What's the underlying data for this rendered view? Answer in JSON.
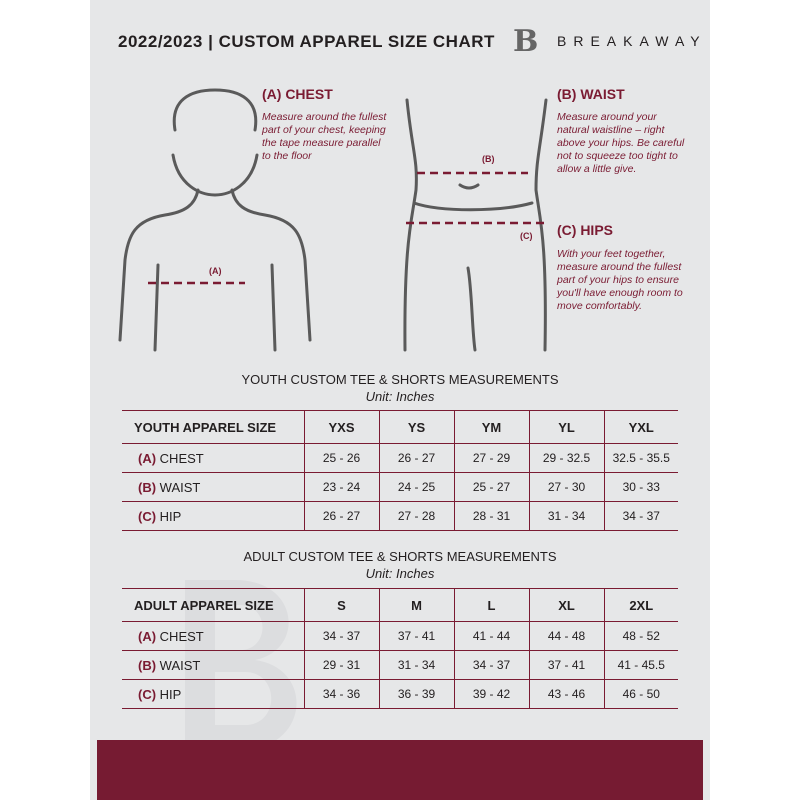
{
  "header": {
    "title": "2022/2023  |  CUSTOM APPAREL SIZE CHART",
    "brand": "BREAKAWAY",
    "logo_letter": "B"
  },
  "measures": {
    "chest": {
      "heading": "(A) CHEST",
      "marker": "(A)",
      "text": "Measure around the fullest part of your chest, keeping the tape measure parallel to the floor"
    },
    "waist": {
      "heading": "(B) WAIST",
      "marker": "(B)",
      "text": "Measure around your natural waistline – right above your hips. Be careful not to squeeze too tight to allow a little give."
    },
    "hips": {
      "heading": "(C) HIPS",
      "marker": "(C)",
      "text": "With your feet together, measure around the fullest part of your hips to ensure you'll have enough room to move comfortably."
    }
  },
  "youth": {
    "title": "YOUTH CUSTOM TEE & SHORTS MEASUREMENTS",
    "unit": "Unit: Inches",
    "header": [
      "YOUTH APPAREL SIZE",
      "YXS",
      "YS",
      "YM",
      "YL",
      "YXL"
    ],
    "rows": [
      {
        "code": "(A)",
        "name": "CHEST",
        "values": [
          "25 - 26",
          "26 - 27",
          "27 - 29",
          "29 - 32.5",
          "32.5 - 35.5"
        ]
      },
      {
        "code": "(B)",
        "name": "WAIST",
        "values": [
          "23 - 24",
          "24 - 25",
          "25 - 27",
          "27 - 30",
          "30 - 33"
        ]
      },
      {
        "code": "(C)",
        "name": "HIP",
        "values": [
          "26 - 27",
          "27 - 28",
          "28 - 31",
          "31 - 34",
          "34 - 37"
        ]
      }
    ]
  },
  "adult": {
    "title": "ADULT CUSTOM TEE & SHORTS MEASUREMENTS",
    "unit": "Unit: Inches",
    "header": [
      "ADULT APPAREL SIZE",
      "S",
      "M",
      "L",
      "XL",
      "2XL"
    ],
    "rows": [
      {
        "code": "(A)",
        "name": "CHEST",
        "values": [
          "34 - 37",
          "37 - 41",
          "41 - 44",
          "44 - 48",
          "48 - 52"
        ]
      },
      {
        "code": "(B)",
        "name": "WAIST",
        "values": [
          "29 - 31",
          "31 - 34",
          "34 - 37",
          "37 - 41",
          "41 - 45.5"
        ]
      },
      {
        "code": "(C)",
        "name": "HIP",
        "values": [
          "34 - 36",
          "36 - 39",
          "39 - 42",
          "43 - 46",
          "46 - 50"
        ]
      }
    ]
  },
  "colors": {
    "accent": "#761b32",
    "background": "#e6e7e8",
    "text": "#231f20"
  }
}
